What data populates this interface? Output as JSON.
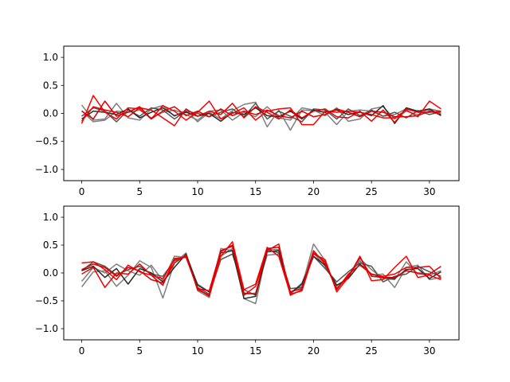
{
  "chart_data": [
    {
      "type": "line",
      "title": "",
      "xlabel": "",
      "ylabel": "",
      "xlim": [
        -1.55,
        32.55
      ],
      "ylim": [
        -1.2,
        1.2
      ],
      "xticks": [
        0,
        5,
        10,
        15,
        20,
        25,
        30
      ],
      "yticks": [
        -1.0,
        -0.5,
        0.0,
        0.5,
        1.0
      ],
      "ytick_labels": [
        "−1.0",
        "−0.5",
        "0.0",
        "0.5",
        "1.0"
      ],
      "grid": false,
      "legend": "none",
      "x": [
        0,
        1,
        2,
        3,
        4,
        5,
        6,
        7,
        8,
        9,
        10,
        11,
        12,
        13,
        14,
        15,
        16,
        17,
        18,
        19,
        20,
        21,
        22,
        23,
        24,
        25,
        26,
        27,
        28,
        29,
        30,
        31
      ],
      "series": [
        {
          "color": "#7f7f7f",
          "values": [
            0.15,
            -0.12,
            -0.1,
            0.18,
            -0.08,
            -0.12,
            0.08,
            0.14,
            -0.05,
            0.06,
            -0.15,
            0.02,
            -0.1,
            0.05,
            0.16,
            0.2,
            -0.24,
            0.06,
            -0.3,
            0.06,
            0.05,
            0.02,
            -0.2,
            0.04,
            0.06,
            0.04,
            -0.05,
            -0.02,
            0.08,
            0.04,
            0.06,
            0.0
          ]
        },
        {
          "color": "#7f7f7f",
          "values": [
            0.05,
            -0.15,
            -0.12,
            0.04,
            0.02,
            0.06,
            -0.08,
            0.02,
            0.06,
            -0.02,
            -0.12,
            0.04,
            0.06,
            -0.12,
            0.02,
            -0.06,
            0.12,
            -0.08,
            -0.12,
            0.1,
            0.06,
            -0.04,
            0.1,
            -0.14,
            -0.1,
            0.08,
            0.12,
            -0.1,
            0.04,
            -0.02,
            0.08,
            0.04
          ]
        },
        {
          "color": "#555555",
          "values": [
            -0.05,
            0.1,
            0.04,
            -0.15,
            0.06,
            -0.05,
            0.1,
            0.06,
            -0.1,
            0.04,
            0.0,
            -0.06,
            0.02,
            0.08,
            -0.06,
            0.18,
            -0.1,
            0.04,
            -0.05,
            -0.15,
            0.08,
            0.06,
            -0.1,
            0.08,
            -0.04,
            0.06,
            -0.05,
            0.02,
            -0.08,
            0.05,
            -0.02,
            0.03
          ]
        },
        {
          "color": "#2a2a2a",
          "values": [
            -0.1,
            0.04,
            0.02,
            -0.02,
            0.08,
            -0.08,
            0.02,
            0.1,
            -0.04,
            0.02,
            -0.05,
            0.0,
            -0.14,
            0.02,
            -0.02,
            0.1,
            -0.04,
            -0.06,
            0.04,
            -0.1,
            0.06,
            0.02,
            0.06,
            -0.02,
            0.02,
            -0.04,
            0.14,
            -0.18,
            0.1,
            0.04,
            0.08,
            -0.04
          ]
        },
        {
          "color": "#ff0000",
          "values": [
            -0.18,
            0.32,
            0.02,
            -0.1,
            0.1,
            0.08,
            -0.1,
            0.14,
            0.04,
            -0.12,
            0.02,
            0.22,
            -0.1,
            0.0,
            0.1,
            -0.12,
            0.04,
            0.08,
            0.1,
            -0.2,
            -0.2,
            0.04,
            0.02,
            0.04,
            0.02,
            -0.02,
            -0.08,
            -0.08,
            0.06,
            -0.06,
            0.22,
            0.08
          ]
        },
        {
          "color": "#ee0000",
          "values": [
            -0.14,
            0.12,
            0.06,
            0.02,
            -0.06,
            0.1,
            0.06,
            -0.08,
            -0.22,
            0.08,
            -0.05,
            0.04,
            -0.02,
            0.18,
            -0.08,
            0.12,
            0.02,
            -0.1,
            0.06,
            -0.08,
            0.04,
            0.08,
            -0.06,
            -0.08,
            0.04,
            -0.14,
            0.06,
            -0.16,
            0.08,
            0.02,
            0.02,
            0.04
          ]
        },
        {
          "color": "#dd0000",
          "values": [
            0.04,
            -0.1,
            0.22,
            -0.05,
            0.02,
            0.12,
            -0.1,
            0.04,
            0.12,
            -0.04,
            0.04,
            -0.06,
            0.08,
            -0.04,
            0.04,
            -0.02,
            0.06,
            -0.04,
            -0.08,
            0.04,
            -0.06,
            -0.02,
            0.08,
            0.02,
            -0.06,
            0.04,
            0.02,
            -0.06,
            -0.06,
            -0.04,
            0.04,
            -0.02
          ]
        }
      ]
    },
    {
      "type": "line",
      "title": "",
      "xlabel": "",
      "ylabel": "",
      "xlim": [
        -1.55,
        32.55
      ],
      "ylim": [
        -1.2,
        1.2
      ],
      "xticks": [
        0,
        5,
        10,
        15,
        20,
        25,
        30
      ],
      "yticks": [
        -1.0,
        -0.5,
        0.0,
        0.5,
        1.0
      ],
      "ytick_labels": [
        "−1.0",
        "−0.5",
        "0.0",
        "0.5",
        "1.0"
      ],
      "grid": false,
      "legend": "none",
      "x": [
        0,
        1,
        2,
        3,
        4,
        5,
        6,
        7,
        8,
        9,
        10,
        11,
        12,
        13,
        14,
        15,
        16,
        17,
        18,
        19,
        20,
        21,
        22,
        23,
        24,
        25,
        26,
        27,
        28,
        29,
        30,
        31
      ],
      "series": [
        {
          "color": "#7f7f7f",
          "values": [
            -0.25,
            0.02,
            0.04,
            -0.24,
            -0.04,
            0.22,
            0.1,
            -0.45,
            0.18,
            0.36,
            -0.32,
            -0.44,
            0.44,
            0.4,
            -0.46,
            -0.55,
            0.42,
            0.42,
            -0.34,
            -0.24,
            0.52,
            0.22,
            -0.3,
            -0.04,
            0.22,
            -0.04,
            -0.02,
            -0.26,
            0.1,
            0.14,
            -0.12,
            -0.08
          ]
        },
        {
          "color": "#7f7f7f",
          "values": [
            -0.15,
            0.1,
            0.0,
            0.16,
            0.04,
            -0.04,
            0.14,
            -0.14,
            0.3,
            0.28,
            -0.2,
            -0.34,
            0.3,
            0.44,
            -0.38,
            -0.36,
            0.32,
            0.34,
            -0.38,
            -0.18,
            0.36,
            0.12,
            -0.24,
            -0.08,
            0.26,
            0.06,
            -0.1,
            -0.12,
            0.2,
            -0.02,
            -0.04,
            0.04
          ]
        },
        {
          "color": "#555555",
          "values": [
            0.04,
            0.2,
            0.12,
            -0.04,
            0.06,
            0.12,
            -0.02,
            -0.06,
            0.22,
            0.3,
            -0.26,
            -0.38,
            0.24,
            0.34,
            -0.3,
            -0.4,
            0.42,
            0.36,
            -0.28,
            -0.26,
            0.3,
            0.08,
            -0.16,
            0.02,
            0.18,
            0.12,
            -0.16,
            -0.06,
            -0.02,
            0.12,
            0.02,
            -0.06
          ]
        },
        {
          "color": "#2a2a2a",
          "values": [
            0.04,
            0.12,
            -0.08,
            0.08,
            -0.2,
            0.08,
            0.0,
            -0.16,
            0.1,
            0.34,
            -0.22,
            -0.34,
            0.36,
            0.4,
            -0.46,
            -0.42,
            0.38,
            0.4,
            -0.36,
            -0.2,
            0.3,
            0.14,
            -0.22,
            -0.1,
            0.16,
            -0.02,
            -0.08,
            -0.1,
            0.06,
            0.08,
            -0.1,
            0.02
          ]
        },
        {
          "color": "#ff0000",
          "values": [
            0.18,
            0.2,
            0.06,
            -0.12,
            0.14,
            0.02,
            -0.04,
            -0.1,
            0.24,
            0.3,
            -0.28,
            -0.42,
            0.3,
            0.56,
            -0.3,
            -0.2,
            0.46,
            0.3,
            -0.38,
            -0.32,
            0.34,
            0.24,
            -0.34,
            -0.08,
            0.3,
            -0.14,
            -0.12,
            0.1,
            0.3,
            -0.08,
            -0.04,
            -0.12
          ]
        },
        {
          "color": "#ee0000",
          "values": [
            -0.02,
            0.1,
            -0.26,
            0.0,
            -0.02,
            0.16,
            -0.04,
            -0.22,
            0.26,
            0.28,
            -0.28,
            -0.32,
            0.4,
            0.48,
            -0.4,
            -0.24,
            0.4,
            0.52,
            -0.4,
            -0.3,
            0.36,
            0.2,
            -0.3,
            -0.02,
            0.14,
            -0.02,
            -0.06,
            -0.02,
            0.1,
            0.1,
            0.12,
            -0.1
          ]
        },
        {
          "color": "#dd0000",
          "values": [
            0.06,
            0.16,
            0.1,
            -0.06,
            0.1,
            0.04,
            -0.12,
            -0.18,
            0.18,
            0.32,
            -0.3,
            -0.4,
            0.38,
            0.5,
            -0.36,
            -0.38,
            0.44,
            0.46,
            -0.34,
            -0.28,
            0.4,
            0.16,
            -0.28,
            -0.06,
            0.28,
            -0.06,
            -0.08,
            -0.08,
            0.04,
            0.0,
            -0.02,
            0.12
          ]
        }
      ]
    }
  ]
}
